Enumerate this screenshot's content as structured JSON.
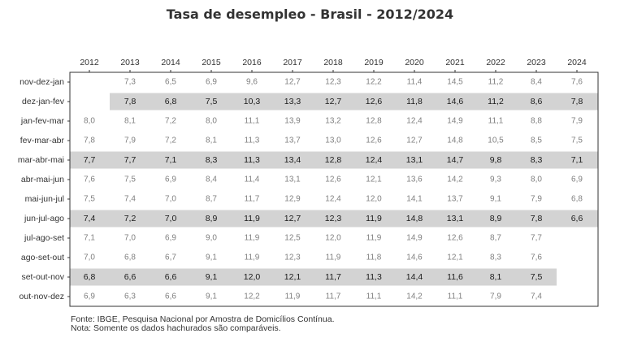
{
  "title": "Tasa de desempleo - Brasil - 2012/2024",
  "chart_data": {
    "type": "table",
    "title": "Tasa de desempleo - Brasil - 2012/2024",
    "columns": [
      "2012",
      "2013",
      "2014",
      "2015",
      "2016",
      "2017",
      "2018",
      "2019",
      "2020",
      "2021",
      "2022",
      "2023",
      "2024"
    ],
    "rows": [
      {
        "label": "nov-dez-jan",
        "highlight": false,
        "values": [
          "",
          "7,3",
          "6,5",
          "6,9",
          "9,6",
          "12,7",
          "12,3",
          "12,2",
          "11,4",
          "14,5",
          "11,2",
          "8,4",
          "7,6"
        ]
      },
      {
        "label": "dez-jan-fev",
        "highlight": true,
        "values": [
          "",
          "7,8",
          "6,8",
          "7,5",
          "10,3",
          "13,3",
          "12,7",
          "12,6",
          "11,8",
          "14,6",
          "11,2",
          "8,6",
          "7,8"
        ]
      },
      {
        "label": "jan-fev-mar",
        "highlight": false,
        "values": [
          "8,0",
          "8,1",
          "7,2",
          "8,0",
          "11,1",
          "13,9",
          "13,2",
          "12,8",
          "12,4",
          "14,9",
          "11,1",
          "8,8",
          "7,9"
        ]
      },
      {
        "label": "fev-mar-abr",
        "highlight": false,
        "values": [
          "7,8",
          "7,9",
          "7,2",
          "8,1",
          "11,3",
          "13,7",
          "13,0",
          "12,6",
          "12,7",
          "14,8",
          "10,5",
          "8,5",
          "7,5"
        ]
      },
      {
        "label": "mar-abr-mai",
        "highlight": true,
        "values": [
          "7,7",
          "7,7",
          "7,1",
          "8,3",
          "11,3",
          "13,4",
          "12,8",
          "12,4",
          "13,1",
          "14,7",
          "9,8",
          "8,3",
          "7,1"
        ]
      },
      {
        "label": "abr-mai-jun",
        "highlight": false,
        "values": [
          "7,6",
          "7,5",
          "6,9",
          "8,4",
          "11,4",
          "13,1",
          "12,6",
          "12,1",
          "13,6",
          "14,2",
          "9,3",
          "8,0",
          "6,9"
        ]
      },
      {
        "label": "mai-jun-jul",
        "highlight": false,
        "values": [
          "7,5",
          "7,4",
          "7,0",
          "8,7",
          "11,7",
          "12,9",
          "12,4",
          "12,0",
          "14,1",
          "13,7",
          "9,1",
          "7,9",
          "6,8"
        ]
      },
      {
        "label": "jun-jul-ago",
        "highlight": true,
        "values": [
          "7,4",
          "7,2",
          "7,0",
          "8,9",
          "11,9",
          "12,7",
          "12,3",
          "11,9",
          "14,8",
          "13,1",
          "8,9",
          "7,8",
          "6,6"
        ]
      },
      {
        "label": "jul-ago-set",
        "highlight": false,
        "values": [
          "7,1",
          "7,0",
          "6,9",
          "9,0",
          "11,9",
          "12,5",
          "12,0",
          "11,9",
          "14,9",
          "12,6",
          "8,7",
          "7,7",
          ""
        ]
      },
      {
        "label": "ago-set-out",
        "highlight": false,
        "values": [
          "7,0",
          "6,8",
          "6,7",
          "9,1",
          "11,9",
          "12,3",
          "11,9",
          "11,8",
          "14,6",
          "12,1",
          "8,3",
          "7,6",
          ""
        ]
      },
      {
        "label": "set-out-nov",
        "highlight": true,
        "values": [
          "6,8",
          "6,6",
          "6,6",
          "9,1",
          "12,0",
          "12,1",
          "11,7",
          "11,3",
          "14,4",
          "11,6",
          "8,1",
          "7,5",
          ""
        ]
      },
      {
        "label": "out-nov-dez",
        "highlight": false,
        "values": [
          "6,9",
          "6,3",
          "6,6",
          "9,1",
          "12,2",
          "11,9",
          "11,7",
          "11,1",
          "14,2",
          "11,1",
          "7,9",
          "7,4",
          ""
        ]
      }
    ]
  },
  "footer": {
    "source": "Fonte: IBGE, Pesquisa Nacional por Amostra de Domicílios Contínua.",
    "note": "Nota: Somente os dados hachurados são comparáveis."
  },
  "colors": {
    "highlight": "#d3d3d3",
    "text": "#333333",
    "value_text": "#808080",
    "value_text_highlight": "#1a1a1a",
    "border": "#333333"
  }
}
